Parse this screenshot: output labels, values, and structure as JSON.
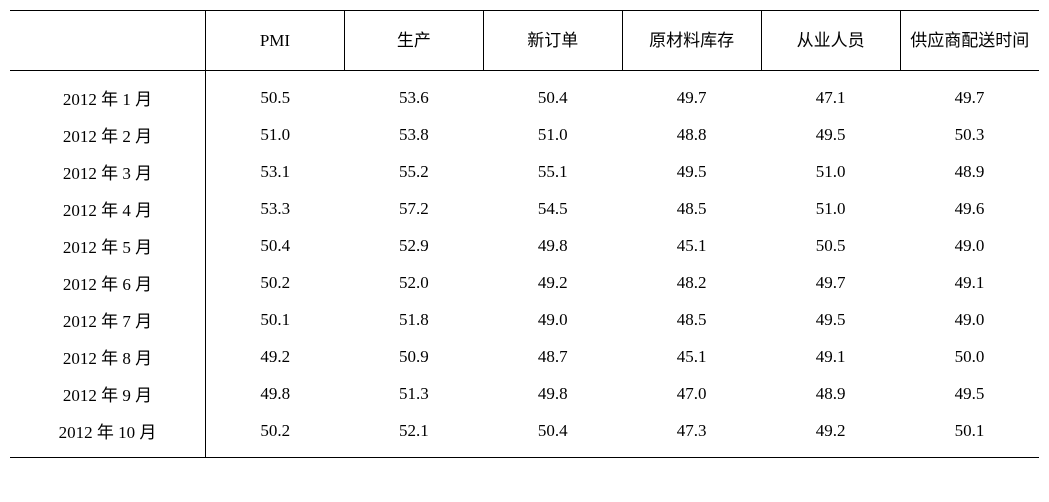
{
  "table": {
    "columns": [
      "",
      "PMI",
      "生产",
      "新订单",
      "原材料库存",
      "从业人员",
      "供应商配送时间"
    ],
    "rows": [
      [
        "2012 年 1 月",
        "50.5",
        "53.6",
        "50.4",
        "49.7",
        "47.1",
        "49.7"
      ],
      [
        "2012 年 2 月",
        "51.0",
        "53.8",
        "51.0",
        "48.8",
        "49.5",
        "50.3"
      ],
      [
        "2012 年 3 月",
        "53.1",
        "55.2",
        "55.1",
        "49.5",
        "51.0",
        "48.9"
      ],
      [
        "2012 年 4 月",
        "53.3",
        "57.2",
        "54.5",
        "48.5",
        "51.0",
        "49.6"
      ],
      [
        "2012 年 5 月",
        "50.4",
        "52.9",
        "49.8",
        "45.1",
        "50.5",
        "49.0"
      ],
      [
        "2012 年 6 月",
        "50.2",
        "52.0",
        "49.2",
        "48.2",
        "49.7",
        "49.1"
      ],
      [
        "2012 年 7 月",
        "50.1",
        "51.8",
        "49.0",
        "48.5",
        "49.5",
        "49.0"
      ],
      [
        "2012 年 8 月",
        "49.2",
        "50.9",
        "48.7",
        "45.1",
        "49.1",
        "50.0"
      ],
      [
        "2012 年 9 月",
        "49.8",
        "51.3",
        "49.8",
        "47.0",
        "48.9",
        "49.5"
      ],
      [
        "2012 年 10 月",
        "50.2",
        "52.1",
        "50.4",
        "47.3",
        "49.2",
        "50.1"
      ]
    ],
    "background_color": "#ffffff",
    "text_color": "#000000",
    "border_color": "#000000",
    "font_size": 17
  }
}
